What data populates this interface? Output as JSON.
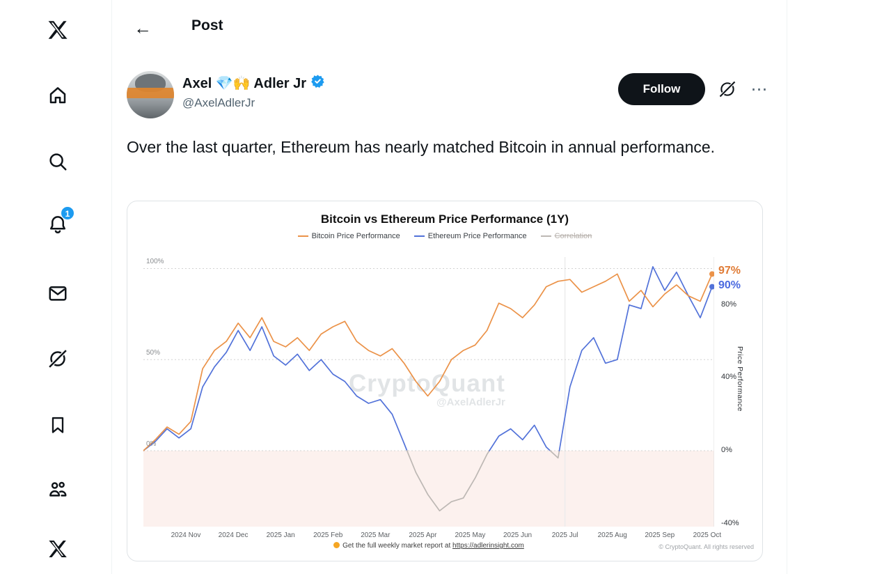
{
  "sidebar": {
    "notification_badge": "1",
    "items": [
      {
        "icon": "x-logo-icon"
      },
      {
        "icon": "home-icon"
      },
      {
        "icon": "search-icon"
      },
      {
        "icon": "notifications-bell-icon",
        "badge": "1"
      },
      {
        "icon": "messages-envelope-icon"
      },
      {
        "icon": "grok-icon"
      },
      {
        "icon": "bookmark-icon"
      },
      {
        "icon": "communities-people-icon"
      },
      {
        "icon": "x-premium-icon"
      }
    ]
  },
  "header": {
    "title": "Post",
    "back_arrow": "←"
  },
  "post": {
    "author": {
      "name": "Axel 💎🙌 Adler Jr",
      "handle": "@AxelAdlerJr",
      "verified": true
    },
    "follow_label": "Follow",
    "more_label": "⋯",
    "body": "Over the last quarter, Ethereum has nearly matched Bitcoin in annual performance."
  },
  "chart_data": {
    "type": "line",
    "title": "Bitcoin vs Ethereum Price Performance (1Y)",
    "legend": [
      {
        "label": "Bitcoin Price Performance",
        "color": "#eb9248",
        "disabled": false
      },
      {
        "label": "Ethereum Price Performance",
        "color": "#5272d9",
        "disabled": false
      },
      {
        "label": "Correlation",
        "color": "#bdb8b4",
        "disabled": true
      }
    ],
    "x_ticks": [
      "2024 Nov",
      "2024 Dec",
      "2025 Jan",
      "2025 Feb",
      "2025 Mar",
      "2025 Apr",
      "2025 May",
      "2025 Jun",
      "2025 Jul",
      "2025 Aug",
      "2025 Sep",
      "2025 Oct"
    ],
    "left_ticks": [
      {
        "label": "100%",
        "value": 100
      },
      {
        "label": "50%",
        "value": 50
      },
      {
        "label": "0%",
        "value": 0
      }
    ],
    "right_ticks": [
      {
        "label": "80%",
        "value": 80
      },
      {
        "label": "40%",
        "value": 40
      },
      {
        "label": "0%",
        "value": 0
      },
      {
        "label": "-40%",
        "value": -40
      }
    ],
    "right_axis_label": "Price Performance",
    "ylim": [
      -42,
      106
    ],
    "grid": "horizontal-dotted",
    "vertical_marker": "2025 Jul",
    "sampling": "approx weekly, 49 points from 2024 Oct to 2025 Oct",
    "series": [
      {
        "key": "btc",
        "name": "Bitcoin Price Performance",
        "color": "#eb9248",
        "end_label": "97%",
        "end_value": 97,
        "values": [
          0,
          6,
          13,
          9,
          16,
          45,
          55,
          60,
          70,
          62,
          73,
          60,
          57,
          62,
          55,
          64,
          68,
          71,
          60,
          55,
          52,
          56,
          48,
          38,
          30,
          38,
          50,
          55,
          58,
          66,
          81,
          78,
          73,
          80,
          90,
          93,
          94,
          87,
          90,
          93,
          97,
          82,
          88,
          79,
          86,
          91,
          85,
          82,
          97
        ]
      },
      {
        "key": "eth",
        "name": "Ethereum Price Performance",
        "color": "#5272d9",
        "negative_color": "#bdb8b4",
        "end_label": "90%",
        "end_value": 90,
        "values": [
          0,
          5,
          12,
          7,
          12,
          35,
          46,
          54,
          66,
          55,
          68,
          52,
          47,
          53,
          44,
          50,
          42,
          38,
          30,
          26,
          28,
          20,
          4,
          -12,
          -24,
          -33,
          -28,
          -26,
          -15,
          -2,
          8,
          12,
          6,
          14,
          2,
          -4,
          35,
          55,
          62,
          48,
          50,
          80,
          78,
          101,
          88,
          98,
          85,
          73,
          90
        ]
      }
    ],
    "negative_region_color": "#fcf1ee",
    "watermark": {
      "line1": "CryptoQuant",
      "line2": "@AxelAdlerJr"
    },
    "footer_note": {
      "bullet_icon": "orange-circle-emoji",
      "text": "Get the full weekly market report at",
      "link": "https://adlerinsight.com"
    },
    "copyright": "© CryptoQuant. All rights reserved"
  }
}
